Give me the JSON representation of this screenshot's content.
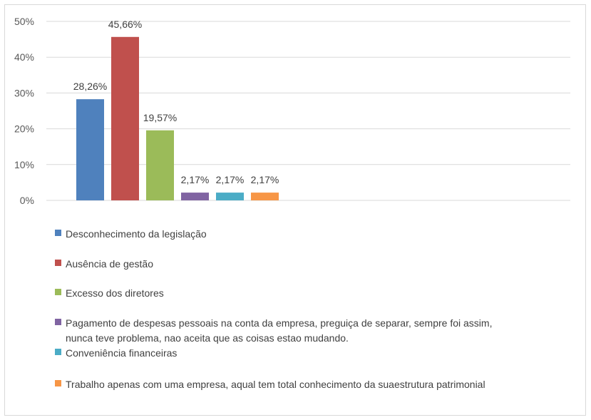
{
  "chart_data": {
    "type": "bar",
    "title": "",
    "xlabel": "",
    "ylabel": "",
    "ylim": [
      0,
      50
    ],
    "yticks": [
      "0%",
      "10%",
      "20%",
      "30%",
      "40%",
      "50%"
    ],
    "grid": true,
    "legend_position": "bottom",
    "categories": [
      "Desconhecimento da legislação",
      "Ausência de gestão",
      "Excesso dos diretores",
      "Pagamento de despesas pessoais na conta da empresa, preguiça de separar, sempre foi assim, nunca teve problema, nao aceita que as coisas estao mudando.",
      "Conveniência financeiras",
      "Trabalho apenas com uma empresa, aqual tem total conhecimento da suaestrutura patrimonial"
    ],
    "legend_lines": [
      [
        "Desconhecimento da legislação"
      ],
      [
        "Ausência de gestão"
      ],
      [
        "Excesso dos diretores"
      ],
      [
        "Pagamento de despesas pessoais na conta da empresa, preguiça de separar, sempre foi assim,",
        "nunca teve problema, nao aceita que as coisas estao mudando."
      ],
      [
        "Conveniência financeiras"
      ],
      [
        "Trabalho apenas com uma empresa, aqual tem total conhecimento da suaestrutura patrimonial"
      ]
    ],
    "values": [
      28.26,
      45.66,
      19.57,
      2.17,
      2.17,
      2.17
    ],
    "data_labels": [
      "28,26%",
      "45,66%",
      "19,57%",
      "2,17%",
      "2,17%",
      "2,17%"
    ],
    "colors": [
      "#4f81bd",
      "#c0504d",
      "#9bbb59",
      "#8064a2",
      "#4bacc6",
      "#f79646"
    ]
  }
}
